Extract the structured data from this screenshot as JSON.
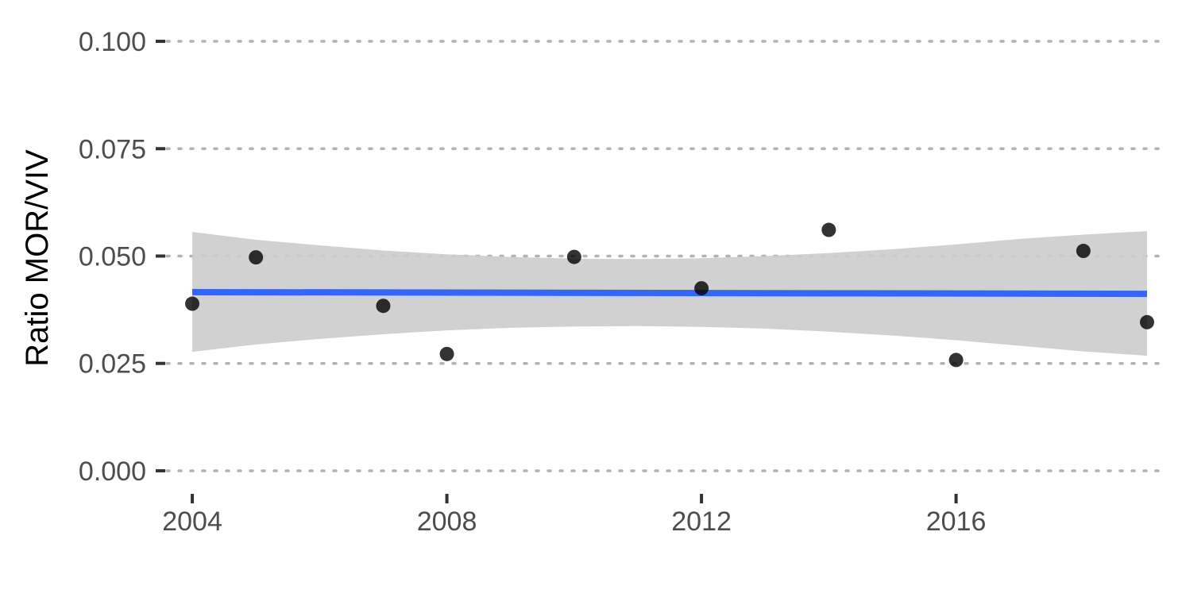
{
  "chart_data": {
    "type": "scatter",
    "title": "",
    "xlabel": "",
    "ylabel": "Ratio MOR/VIV",
    "xlim": [
      2003.6,
      2019.2
    ],
    "ylim": [
      -0.005,
      0.105
    ],
    "x_ticks": [
      2004,
      2008,
      2012,
      2016
    ],
    "x_tick_labels": [
      "2004",
      "2008",
      "2012",
      "2016"
    ],
    "y_ticks": [
      0.0,
      0.025,
      0.05,
      0.075,
      0.1
    ],
    "y_tick_labels": [
      "0.000",
      "0.025",
      "0.050",
      "0.075",
      "0.100"
    ],
    "grid": "horizontal dotted major lines",
    "points": {
      "x": [
        2004,
        2005,
        2007,
        2008,
        2010,
        2012,
        2014,
        2016,
        2018,
        2019
      ],
      "y": [
        0.0389,
        0.0497,
        0.0384,
        0.0272,
        0.0498,
        0.0425,
        0.0561,
        0.0258,
        0.0512,
        0.0346
      ]
    },
    "trend_line": {
      "x": [
        2004,
        2019
      ],
      "y": [
        0.0416,
        0.0412
      ]
    },
    "confidence_band": {
      "x": [
        2004,
        2005,
        2006,
        2007,
        2008,
        2009,
        2010,
        2011,
        2012,
        2013,
        2014,
        2015,
        2016,
        2017,
        2018,
        2019
      ],
      "lower": [
        0.0277,
        0.0294,
        0.0307,
        0.0318,
        0.0327,
        0.0333,
        0.0336,
        0.0337,
        0.0335,
        0.0331,
        0.0324,
        0.0315,
        0.0304,
        0.0291,
        0.0278,
        0.0268
      ],
      "upper": [
        0.0556,
        0.0538,
        0.0525,
        0.0513,
        0.0504,
        0.0498,
        0.0494,
        0.0493,
        0.0495,
        0.05,
        0.0507,
        0.0516,
        0.0527,
        0.054,
        0.055,
        0.0558
      ]
    },
    "colors": {
      "points": "#000000",
      "trend_line": "#3366ff",
      "confidence_band": "#cccccc",
      "grid": "#b3b3b3",
      "tick_label": "#4d4d4d",
      "tick_mark": "#333333"
    }
  }
}
